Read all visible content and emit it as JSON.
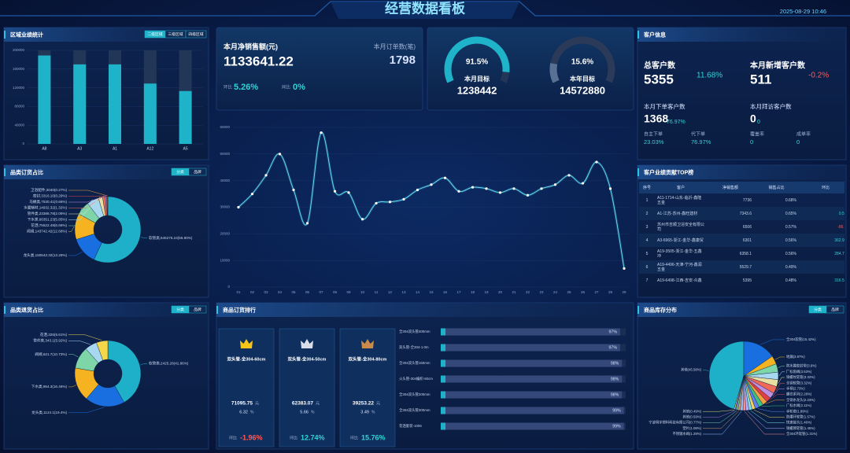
{
  "header": {
    "title": "经营数据看板",
    "datetime": "2025-08-29 10:46"
  },
  "sales_card": {
    "net_sales_label": "本月净销售额(元)",
    "net_sales": "1133641.22",
    "orders_label": "本月订单数(笔)",
    "orders": "1798",
    "mom_label": "环比",
    "mom": "5.26%",
    "yoy_label": "同比",
    "yoy": "0%"
  },
  "customer_info": {
    "title": "客户信息",
    "total_label": "总客户数",
    "total": "5355",
    "total_change": "11.68%",
    "new_label": "本月新增客户数",
    "new": "511",
    "new_change": "-0.2%",
    "ordering_label": "本月下单客户数",
    "ordering": "1368",
    "ordering_rate": "76.97%",
    "visited_label": "本月拜访客户数",
    "visited": "0",
    "visited_rate": "0",
    "self_order_label": "自主下单",
    "self_order": "23.03%",
    "proxy_order_label": "代下单",
    "proxy_order": "76.97%",
    "coverage_label": "覆盖率",
    "coverage": "0",
    "close_rate_label": "成单率",
    "close_rate": "0"
  },
  "top_customers": {
    "title": "客户业绩贡献TOP榜",
    "columns": [
      "序号",
      "客户",
      "净销售额",
      "销售占比",
      "环比"
    ],
    "rows": [
      [
        "1",
        "A11-1714-山东-临沂-鑫隆五金",
        "7736",
        "0.68%",
        "-"
      ],
      [
        "2",
        "A1-江苏-苏州-鑫旺建材",
        "7343.6",
        "0.65%",
        "0.55%"
      ],
      [
        "3",
        "苏州市吉顺卫浴安全有限公司",
        "6506",
        "0.57%",
        "-86.9%"
      ],
      [
        "4",
        "A3-6965-浙江-金华-鑫康贸",
        "6301",
        "0.56%",
        "362.97%"
      ],
      [
        "5",
        "A19-3505-浙江-金华-五鑫冲",
        "6358.1",
        "0.56%",
        "284.72%"
      ],
      [
        "6",
        "A19-4496-天津-宁河-鑫润五金",
        "5529.7",
        "0.49%",
        "-"
      ],
      [
        "7",
        "A19-6498-江西-吉安-众鑫",
        "5395",
        "0.48%",
        "316.52%"
      ]
    ]
  },
  "product_ranking": {
    "title": "商品订货排行",
    "cards": [
      {
        "name": "双头管-全304-60cm",
        "amount": "71095.75",
        "amount_unit": "元",
        "share": "6.32",
        "share_unit": "%",
        "mom_label": "环比",
        "mom": "-1.96%"
      },
      {
        "name": "双头管-全304-50cm",
        "amount": "62383.07",
        "amount_unit": "元",
        "share": "5.66",
        "share_unit": "%",
        "mom_label": "环比",
        "mom": "12.74%"
      },
      {
        "name": "双头管-全304-80cm",
        "amount": "39253.22",
        "amount_unit": "元",
        "share": "3.49",
        "share_unit": "%",
        "mom_label": "环比",
        "mom": "15.76%"
      }
    ]
  },
  "chart_data": [
    {
      "type": "bar",
      "title": "区域业绩统计",
      "tabs": [
        "二级区域",
        "三级区域",
        "四级区域"
      ],
      "categories": [
        "A8",
        "A3",
        "A1",
        "A12",
        "A5"
      ],
      "values": [
        189000,
        170000,
        170000,
        129000,
        113000
      ],
      "color": "#1fb3c9",
      "ylim": [
        0,
        200000
      ],
      "yticks": [
        0,
        40000,
        80000,
        120000,
        160000,
        200000
      ]
    },
    {
      "type": "line",
      "categories": [
        "01",
        "02",
        "03",
        "04",
        "05",
        "06",
        "07",
        "08",
        "09",
        "10",
        "11",
        "12",
        "13",
        "14",
        "15",
        "16",
        "17",
        "18",
        "19",
        "20",
        "21",
        "22",
        "23",
        "24",
        "25",
        "26",
        "27",
        "28",
        "29"
      ],
      "values": [
        30000,
        35000,
        42000,
        50000,
        36500,
        24000,
        58000,
        36000,
        35500,
        25500,
        31500,
        32000,
        33000,
        36500,
        38500,
        41000,
        36000,
        37500,
        37000,
        35500,
        37000,
        34500,
        37000,
        38500,
        42000,
        39000,
        47000,
        37000,
        7000
      ],
      "color": "#5fd8f0",
      "ylim": [
        0,
        60000
      ],
      "yticks": [
        0,
        10000,
        20000,
        30000,
        40000,
        50000,
        60000
      ],
      "grid": true
    },
    {
      "type": "donut",
      "title": "品类订货占比",
      "tabs": [
        "分类",
        "品牌"
      ],
      "labels": [
        "软管类,645276.24(56.90%)",
        "龙头类,150543.32(13.28%)",
        "阀阀,143742.42(12.68%)",
        "花洒,75522.49(6.66%)",
        "下水类,66351.23(5.85%)",
        "管件类,23386.78(2.06%)",
        "水暖辅材,14932.32(1.32%)",
        "马桶类,7530.41(0.66%)",
        "密封,3316.10(0.29%)",
        "卫浴配件,3040(0.27%)"
      ],
      "values": [
        56.9,
        13.28,
        12.68,
        6.66,
        5.85,
        2.06,
        1.32,
        0.66,
        0.29,
        0.27
      ],
      "colors": [
        "#1fb0c9",
        "#1a6fe0",
        "#f5b321",
        "#7ed6a8",
        "#a8d8f0",
        "#e8e0a0",
        "#f06a5a",
        "#c090e0",
        "#e04040",
        "#f0a040"
      ]
    },
    {
      "type": "donut",
      "title": "品类退货占比",
      "tabs": [
        "分类",
        "品牌"
      ],
      "labels": [
        "软管类,2425.28(41.86%)",
        "龙头类,1124.1(19.4%)",
        "下水类,954.3(16.46%)",
        "阀阀,621.7(10.73%)",
        "管件类,343.1(5.92%)",
        "花洒,325(5.61%)"
      ],
      "values": [
        41.86,
        19.4,
        16.46,
        10.73,
        5.92,
        5.61
      ],
      "colors": [
        "#1fb0c9",
        "#1a6fe0",
        "#f5b321",
        "#7ed6a8",
        "#a8d8f0",
        "#f5d84a"
      ]
    },
    {
      "type": "pie",
      "title": "商品库存分布",
      "tabs": [
        "分类",
        "品牌"
      ],
      "labels": [
        "其他(45.58%)",
        "全304软管(15.42%)",
        "地漏(3.97%)",
        "防水膜密封带(3.9%)",
        "厂标角阀(3.53%)",
        "铜螺纹软管(3.32%)",
        "全铜软管(3.32%)",
        "手柄(2.73%)",
        "螺纹系列(2.28%)",
        "全铜水龙头(2.23%)",
        "广标水阀(2.11%)",
        "手轮套(1.89%)",
        "防爆环软管(1.57%)",
        "快速接头(1.46%)",
        "铜螺牌软管(1.45%)",
        "全304环软管(1.31%)",
        "不锈钢水阀(1.28%)",
        "塑片(1.08%)",
        "宁波明宇塑料科技有限公司(0.77%)",
        "其他(0.59%)",
        "其他(0.49%)"
      ],
      "values": [
        45.58,
        15.42,
        3.97,
        3.9,
        3.53,
        3.32,
        3.32,
        2.73,
        2.28,
        2.23,
        2.11,
        1.89,
        1.57,
        1.46,
        1.45,
        1.31,
        1.28,
        1.08,
        0.77,
        0.59,
        0.49
      ],
      "colors": [
        "#1fb0c9",
        "#1a6fe0",
        "#f5b321",
        "#7ed6a8",
        "#a8d8f0",
        "#e8e0a0",
        "#f06a5a",
        "#c090e0",
        "#e04040",
        "#f0a040",
        "#40c080",
        "#6080f0",
        "#f0d060",
        "#80e0e0",
        "#b0b0ff",
        "#ff9090",
        "#90c0ff",
        "#d0a070",
        "#70d0a0",
        "#a070d0",
        "#e0e070"
      ]
    },
    {
      "type": "gauge",
      "values": [
        91.5
      ],
      "value_labels": [
        "91.5%"
      ],
      "ylim": [
        0,
        100
      ],
      "label": "本月目标",
      "target": "1238442",
      "color": "#1fb3c9",
      "track_color": "#243657"
    },
    {
      "type": "gauge",
      "values": [
        15.6
      ],
      "value_labels": [
        "15.6%"
      ],
      "ylim": [
        0,
        100
      ],
      "label": "本年目标",
      "target": "14572880",
      "color": "#5a7196",
      "track_color": "#2b3a58"
    },
    {
      "type": "progress",
      "categories": [
        "全304双头管400mm",
        "双头管-全304-1.0m",
        "全304双头管150mm",
        "火头管-304编织-60cm",
        "全304双头管200mm",
        "全304双头管300mm",
        "花洒套装-1006"
      ],
      "values": [
        97,
        97,
        98,
        98,
        98,
        99,
        99
      ],
      "value_labels": [
        "97%",
        "97%",
        "98%",
        "98%",
        "98%",
        "99%",
        "99%"
      ],
      "xlim": [
        0,
        100
      ],
      "color": "#34497a"
    }
  ]
}
